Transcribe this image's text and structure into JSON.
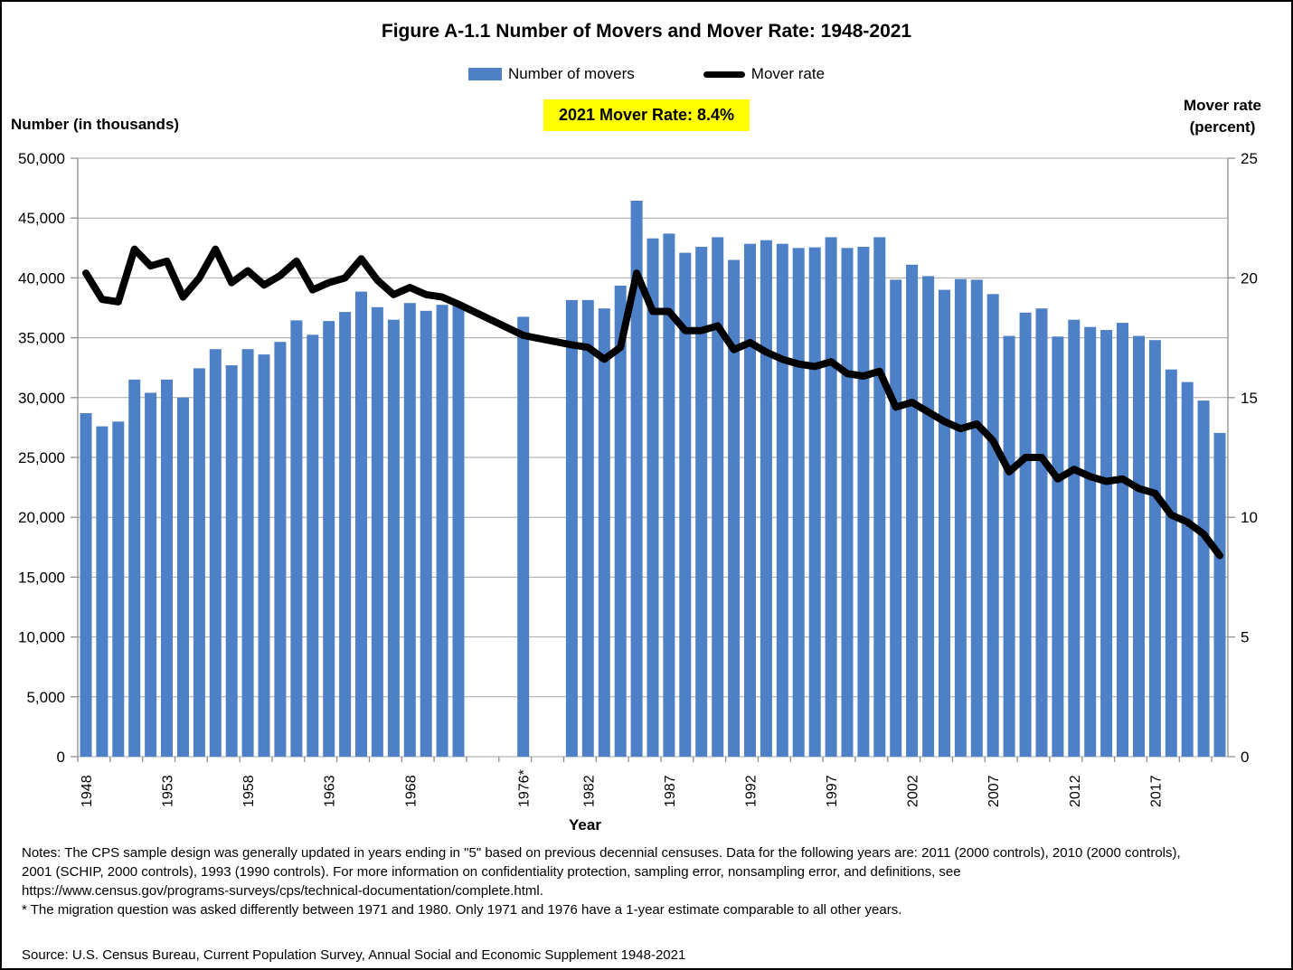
{
  "figure": {
    "title": "Figure A-1.1 Number of Movers and Mover Rate: 1948-2021",
    "legend": [
      {
        "label": "Number of movers",
        "swatch": "bar",
        "color": "#4E80C8"
      },
      {
        "label": "Mover rate",
        "swatch": "line",
        "color": "#000000"
      }
    ],
    "badge": "2021 Mover Rate: 8.4%",
    "left_axis_title": "Number (in thousands)",
    "right_axis_title_line1": "Mover rate",
    "right_axis_title_line2": "(percent)",
    "x_axis_title": "Year"
  },
  "chart_data": {
    "type": "bar+line",
    "title": "Figure A-1.1 Number of Movers and Mover Rate: 1948-2021",
    "annotation": "2021 Mover Rate: 8.4%",
    "grid": "horizontal",
    "legend_position": "top",
    "left_axis": {
      "label": "Number (in thousands)",
      "min": 0,
      "max": 50000,
      "tick_step": 5000,
      "tick_labels": [
        "0",
        "5,000",
        "10,000",
        "15,000",
        "20,000",
        "25,000",
        "30,000",
        "35,000",
        "40,000",
        "45,000",
        "50,000"
      ]
    },
    "right_axis": {
      "label": "Mover rate (percent)",
      "min": 0,
      "max": 25,
      "tick_step": 5,
      "tick_labels": [
        "0",
        "5",
        "10",
        "15",
        "20",
        "25"
      ]
    },
    "x_axis": {
      "label": "Year",
      "total_slots": 71,
      "note": "no data 1972-1975 and 1977-1980",
      "labeled_ticks": [
        {
          "label": "1948",
          "slot": 0
        },
        {
          "label": "1953",
          "slot": 5
        },
        {
          "label": "1958",
          "slot": 10
        },
        {
          "label": "1963",
          "slot": 15
        },
        {
          "label": "1968",
          "slot": 20
        },
        {
          "label": "1976*",
          "slot": 27
        },
        {
          "label": "1982",
          "slot": 31
        },
        {
          "label": "1987",
          "slot": 36
        },
        {
          "label": "1992",
          "slot": 41
        },
        {
          "label": "1997",
          "slot": 46
        },
        {
          "label": "2002",
          "slot": 51
        },
        {
          "label": "2007",
          "slot": 56
        },
        {
          "label": "2012",
          "slot": 61
        },
        {
          "label": "2017",
          "slot": 66
        }
      ]
    },
    "series": [
      {
        "name": "Number of movers",
        "type": "bar",
        "axis": "left",
        "color": "#4E80C8"
      },
      {
        "name": "Mover rate",
        "type": "line",
        "axis": "right",
        "color": "#000000",
        "width": 8
      }
    ],
    "points": [
      {
        "year": "1948",
        "slot": 0,
        "movers": 28700,
        "rate": 20.2
      },
      {
        "year": "1949",
        "slot": 1,
        "movers": 27600,
        "rate": 19.1
      },
      {
        "year": "1950",
        "slot": 2,
        "movers": 28000,
        "rate": 19.0
      },
      {
        "year": "1951",
        "slot": 3,
        "movers": 31500,
        "rate": 21.2
      },
      {
        "year": "1952",
        "slot": 4,
        "movers": 30400,
        "rate": 20.5
      },
      {
        "year": "1953",
        "slot": 5,
        "movers": 31500,
        "rate": 20.7
      },
      {
        "year": "1954",
        "slot": 6,
        "movers": 30000,
        "rate": 19.2
      },
      {
        "year": "1955",
        "slot": 7,
        "movers": 32450,
        "rate": 20.0
      },
      {
        "year": "1956",
        "slot": 8,
        "movers": 34050,
        "rate": 21.2
      },
      {
        "year": "1957",
        "slot": 9,
        "movers": 32700,
        "rate": 19.8
      },
      {
        "year": "1958",
        "slot": 10,
        "movers": 34050,
        "rate": 20.3
      },
      {
        "year": "1959",
        "slot": 11,
        "movers": 33600,
        "rate": 19.7
      },
      {
        "year": "1960",
        "slot": 12,
        "movers": 34650,
        "rate": 20.1
      },
      {
        "year": "1961",
        "slot": 13,
        "movers": 36450,
        "rate": 20.7
      },
      {
        "year": "1962",
        "slot": 14,
        "movers": 35250,
        "rate": 19.5
      },
      {
        "year": "1963",
        "slot": 15,
        "movers": 36400,
        "rate": 19.8
      },
      {
        "year": "1964",
        "slot": 16,
        "movers": 37150,
        "rate": 20.0
      },
      {
        "year": "1965",
        "slot": 17,
        "movers": 38850,
        "rate": 20.8
      },
      {
        "year": "1966",
        "slot": 18,
        "movers": 37550,
        "rate": 19.9
      },
      {
        "year": "1967",
        "slot": 19,
        "movers": 36500,
        "rate": 19.3
      },
      {
        "year": "1968",
        "slot": 20,
        "movers": 37900,
        "rate": 19.6
      },
      {
        "year": "1969",
        "slot": 21,
        "movers": 37250,
        "rate": 19.3
      },
      {
        "year": "1970",
        "slot": 22,
        "movers": 37750,
        "rate": 19.2
      },
      {
        "year": "1971",
        "slot": 23,
        "movers": 37700,
        "rate": 18.9
      },
      {
        "year": "1976",
        "slot": 27,
        "movers": 36750,
        "rate": 17.6
      },
      {
        "year": "1981",
        "slot": 30,
        "movers": 38150,
        "rate": 17.2
      },
      {
        "year": "1982",
        "slot": 31,
        "movers": 38150,
        "rate": 17.1
      },
      {
        "year": "1983",
        "slot": 32,
        "movers": 37450,
        "rate": 16.6
      },
      {
        "year": "1984",
        "slot": 33,
        "movers": 39350,
        "rate": 17.1
      },
      {
        "year": "1985",
        "slot": 34,
        "movers": 46450,
        "rate": 20.2
      },
      {
        "year": "1986",
        "slot": 35,
        "movers": 43300,
        "rate": 18.6
      },
      {
        "year": "1987",
        "slot": 36,
        "movers": 43700,
        "rate": 18.6
      },
      {
        "year": "1988",
        "slot": 37,
        "movers": 42100,
        "rate": 17.8
      },
      {
        "year": "1989",
        "slot": 38,
        "movers": 42600,
        "rate": 17.8
      },
      {
        "year": "1990",
        "slot": 39,
        "movers": 43400,
        "rate": 18.0
      },
      {
        "year": "1991",
        "slot": 40,
        "movers": 41500,
        "rate": 17.0
      },
      {
        "year": "1992",
        "slot": 41,
        "movers": 42850,
        "rate": 17.3
      },
      {
        "year": "1993",
        "slot": 42,
        "movers": 43150,
        "rate": 16.9
      },
      {
        "year": "1994",
        "slot": 43,
        "movers": 42850,
        "rate": 16.6
      },
      {
        "year": "1995",
        "slot": 44,
        "movers": 42500,
        "rate": 16.4
      },
      {
        "year": "1996",
        "slot": 45,
        "movers": 42550,
        "rate": 16.3
      },
      {
        "year": "1997",
        "slot": 46,
        "movers": 43400,
        "rate": 16.5
      },
      {
        "year": "1998",
        "slot": 47,
        "movers": 42500,
        "rate": 16.0
      },
      {
        "year": "1999",
        "slot": 48,
        "movers": 42600,
        "rate": 15.9
      },
      {
        "year": "2000",
        "slot": 49,
        "movers": 43400,
        "rate": 16.1
      },
      {
        "year": "2001",
        "slot": 50,
        "movers": 39850,
        "rate": 14.6
      },
      {
        "year": "2002",
        "slot": 51,
        "movers": 41100,
        "rate": 14.8
      },
      {
        "year": "2003",
        "slot": 52,
        "movers": 40150,
        "rate": 14.4
      },
      {
        "year": "2004",
        "slot": 53,
        "movers": 39000,
        "rate": 14.0
      },
      {
        "year": "2005",
        "slot": 54,
        "movers": 39900,
        "rate": 13.7
      },
      {
        "year": "2006",
        "slot": 55,
        "movers": 39850,
        "rate": 13.9
      },
      {
        "year": "2007",
        "slot": 56,
        "movers": 38650,
        "rate": 13.2
      },
      {
        "year": "2008",
        "slot": 57,
        "movers": 35150,
        "rate": 11.9
      },
      {
        "year": "2009",
        "slot": 58,
        "movers": 37100,
        "rate": 12.5
      },
      {
        "year": "2010",
        "slot": 59,
        "movers": 37450,
        "rate": 12.5
      },
      {
        "year": "2011",
        "slot": 60,
        "movers": 35100,
        "rate": 11.6
      },
      {
        "year": "2012",
        "slot": 61,
        "movers": 36500,
        "rate": 12.0
      },
      {
        "year": "2013",
        "slot": 62,
        "movers": 35900,
        "rate": 11.7
      },
      {
        "year": "2014",
        "slot": 63,
        "movers": 35650,
        "rate": 11.5
      },
      {
        "year": "2015",
        "slot": 64,
        "movers": 36250,
        "rate": 11.6
      },
      {
        "year": "2016",
        "slot": 65,
        "movers": 35150,
        "rate": 11.2
      },
      {
        "year": "2017",
        "slot": 66,
        "movers": 34800,
        "rate": 11.0
      },
      {
        "year": "2018",
        "slot": 67,
        "movers": 32350,
        "rate": 10.1
      },
      {
        "year": "2019",
        "slot": 68,
        "movers": 31300,
        "rate": 9.8
      },
      {
        "year": "2020",
        "slot": 69,
        "movers": 29750,
        "rate": 9.3
      },
      {
        "year": "2021",
        "slot": 70,
        "movers": 27050,
        "rate": 8.4
      }
    ]
  },
  "notes": {
    "lines": [
      "Notes: The CPS sample design was generally updated in years ending in \"5\" based on previous decennial censuses. Data for the following years are: 2011 (2000 controls), 2010 (2000 controls),",
      "2001 (SCHIP, 2000 controls), 1993 (1990 controls). For more information on confidentiality protection, sampling error, nonsampling error, and definitions, see",
      "https://www.census.gov/programs-surveys/cps/technical-documentation/complete.html.",
      "* The migration question was asked differently between 1971 and 1980. Only 1971 and 1976 have a 1-year estimate comparable to all other years."
    ]
  },
  "source": "Source: U.S. Census Bureau, Current Population Survey, Annual Social and Economic Supplement 1948-2021"
}
